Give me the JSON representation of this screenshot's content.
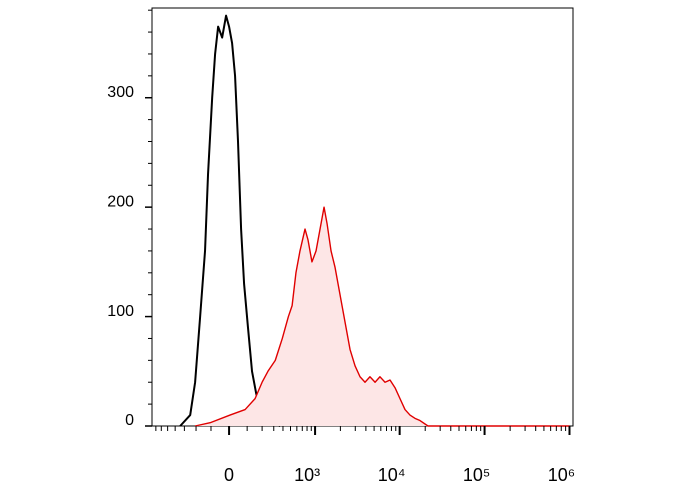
{
  "chart_data": {
    "type": "histogram-overlay",
    "xscale": {
      "type": "arcsinh",
      "cofactor": 196
    },
    "xlim": [
      -780,
      1100000
    ],
    "ylim": [
      0,
      382
    ],
    "xticks": [
      {
        "value": 0,
        "label": "0"
      },
      {
        "value": 1000,
        "label": "10³"
      },
      {
        "value": 10000,
        "label": "10⁴"
      },
      {
        "value": 100000,
        "label": "10⁵"
      },
      {
        "value": 1000000,
        "label": "10⁶"
      }
    ],
    "xminor_ticks": [
      -700,
      -600,
      -500,
      -400,
      -300,
      -200,
      -100,
      100,
      200,
      300,
      400,
      500,
      600,
      700,
      800,
      900,
      2000,
      3000,
      4000,
      5000,
      6000,
      7000,
      8000,
      9000,
      20000,
      30000,
      40000,
      50000,
      60000,
      70000,
      80000,
      90000,
      200000,
      300000,
      400000,
      500000,
      600000,
      700000,
      800000,
      900000
    ],
    "yticks": [
      0,
      100,
      200,
      300
    ],
    "yminor_ticks": [
      20,
      40,
      60,
      80,
      120,
      140,
      160,
      180,
      220,
      240,
      260,
      280,
      320,
      340,
      360,
      380
    ],
    "series": [
      {
        "color": "#000000",
        "fill": "none",
        "x": [
          -343,
          -247,
          -207,
          -170,
          -137,
          -118,
          -93,
          -76,
          -59,
          -37,
          -16,
          0,
          16,
          32,
          48,
          65,
          82,
          105,
          130,
          157,
          185,
          223,
          266,
          368
        ],
        "values": [
          0,
          10,
          40,
          100,
          160,
          230,
          300,
          340,
          365,
          355,
          375,
          365,
          350,
          320,
          260,
          180,
          130,
          90,
          50,
          30,
          15,
          8,
          3,
          0
        ]
      },
      {
        "color": "#e00000",
        "fill": "#fde6e6",
        "x": [
          -207,
          -105,
          5,
          88,
          150,
          200,
          247,
          315,
          392,
          470,
          524,
          585,
          656,
          756,
          822,
          917,
          1027,
          1147,
          1280,
          1390,
          1550,
          1729,
          1876,
          2091,
          2332,
          2600,
          2979,
          3410,
          3908,
          4469,
          5135,
          5860,
          6723,
          7703,
          8820,
          10094,
          11564,
          13230,
          15150,
          17346,
          21560,
          1000000
        ],
        "values": [
          0,
          3,
          10,
          15,
          25,
          40,
          50,
          60,
          80,
          100,
          110,
          140,
          160,
          180,
          170,
          150,
          160,
          180,
          200,
          185,
          160,
          145,
          130,
          110,
          90,
          70,
          55,
          45,
          40,
          45,
          40,
          45,
          40,
          42,
          35,
          25,
          15,
          10,
          7,
          5,
          0,
          0
        ]
      }
    ]
  }
}
